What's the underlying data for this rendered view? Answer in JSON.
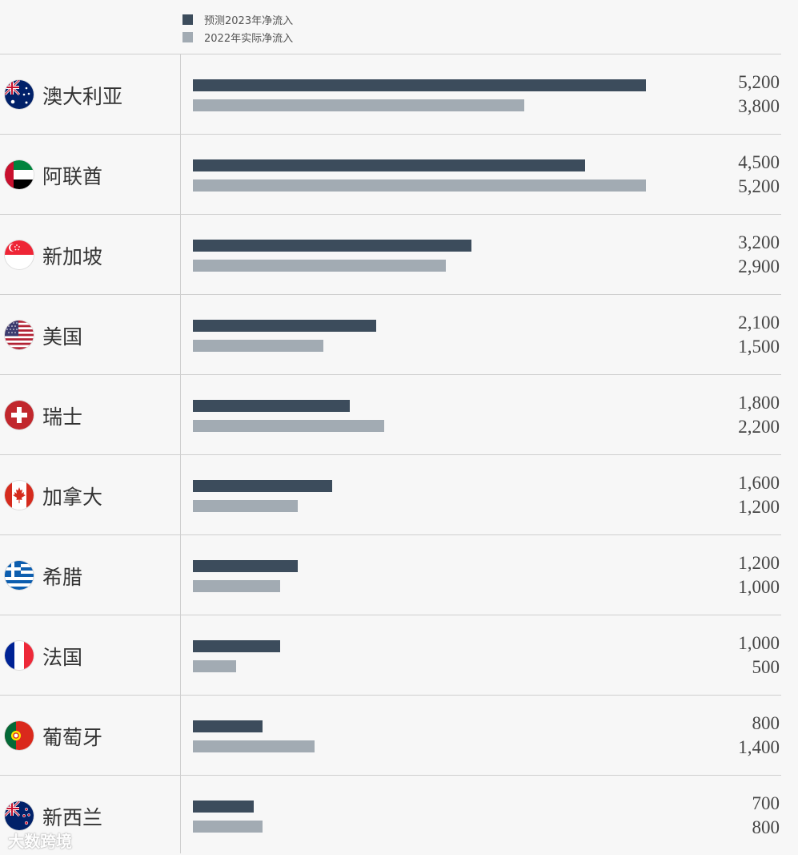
{
  "chart_data": {
    "type": "bar",
    "orientation": "horizontal",
    "categories": [
      "澳大利亚",
      "阿联酋",
      "新加坡",
      "美国",
      "瑞士",
      "加拿大",
      "希腊",
      "法国",
      "葡萄牙",
      "新西兰"
    ],
    "series": [
      {
        "name": "预测2023年净流入",
        "color": "#3c4c5c",
        "values": [
          5200,
          4500,
          3200,
          2100,
          1800,
          1600,
          1200,
          1000,
          800,
          700
        ]
      },
      {
        "name": "2022年实际净流入",
        "color": "#a2abb3",
        "values": [
          3800,
          5200,
          2900,
          1500,
          2200,
          1200,
          1000,
          500,
          1400,
          800
        ]
      }
    ],
    "value_labels_a": [
      "5,200",
      "4,500",
      "3,200",
      "2,100",
      "1,800",
      "1,600",
      "1,200",
      "1,000",
      "800",
      "700"
    ],
    "value_labels_b": [
      "3,800",
      "5,200",
      "2,900",
      "1,500",
      "2,200",
      "1,200",
      "1,000",
      "500",
      "1,400",
      "800"
    ],
    "xlim": [
      0,
      5200
    ],
    "legend_position": "top-left"
  },
  "flags": [
    "australia-flag-icon",
    "uae-flag-icon",
    "singapore-flag-icon",
    "usa-flag-icon",
    "switzerland-flag-icon",
    "canada-flag-icon",
    "greece-flag-icon",
    "france-flag-icon",
    "portugal-flag-icon",
    "new-zealand-flag-icon"
  ],
  "watermark": "大数跨境"
}
